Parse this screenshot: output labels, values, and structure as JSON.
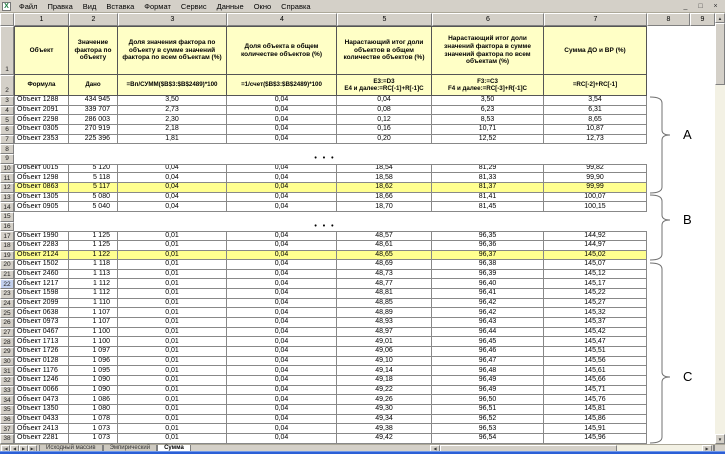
{
  "menu": {
    "items": [
      "Файл",
      "Правка",
      "Вид",
      "Вставка",
      "Формат",
      "Сервис",
      "Данные",
      "Окно",
      "Справка"
    ]
  },
  "window_buttons": [
    {
      "name": "minimize",
      "glyph": "_"
    },
    {
      "name": "restore",
      "glyph": "□"
    },
    {
      "name": "close",
      "glyph": "×"
    }
  ],
  "sheet": {
    "column_headers": [
      "1",
      "2",
      "3",
      "4",
      "5",
      "6",
      "7",
      "8",
      "9"
    ],
    "header_row_numbers": [
      "1",
      "2"
    ],
    "table": {
      "titles": [
        "Объект",
        "Значение фактора по объекту",
        "Доля значения фактора по объекту в сумме значений фактора по всем объектам (%)",
        "Доля объекта в общем количестве объектов (%)",
        "Нарастающий итог доли объектов в общем количестве объектов (%)",
        "Нарастающий итог доли значений фактора в сумме значений фактора по всем объектам (%)",
        "Сумма ДО и ВР (%)"
      ],
      "formulas": [
        "Формула",
        "Дано",
        "=Вп/СУММ($B$3:$B$2489)*100",
        "=1/счет($B$3:$B$2489)*100",
        "E3:=D3\nE4 и далее:=RC[-1]+R[-1]C",
        "F3:=C3\nF4 и далее:=RC[-3]+R[-1]C",
        "=RC[-2]+RC[-1]"
      ]
    },
    "gap_dots": "• • •",
    "rows": [
      {
        "n": "3",
        "name": "Объект 1288",
        "factor": "434 945",
        "share": "3,50",
        "obj_share": "0,04",
        "cum_obj": "0,04",
        "cum_factor": "3,50",
        "sum": "3,54"
      },
      {
        "n": "4",
        "name": "Объект 2091",
        "factor": "339 707",
        "share": "2,73",
        "obj_share": "0,04",
        "cum_obj": "0,08",
        "cum_factor": "6,23",
        "sum": "6,31"
      },
      {
        "n": "5",
        "name": "Объект 2298",
        "factor": "286 003",
        "share": "2,30",
        "obj_share": "0,04",
        "cum_obj": "0,12",
        "cum_factor": "8,53",
        "sum": "8,65"
      },
      {
        "n": "6",
        "name": "Объект 0305",
        "factor": "270 919",
        "share": "2,18",
        "obj_share": "0,04",
        "cum_obj": "0,16",
        "cum_factor": "10,71",
        "sum": "10,87"
      },
      {
        "n": "7",
        "name": "Объект 2353",
        "factor": "225 396",
        "share": "1,81",
        "obj_share": "0,04",
        "cum_obj": "0,20",
        "cum_factor": "12,52",
        "sum": "12,73"
      },
      {
        "n": "8",
        "empty": true
      },
      {
        "n": "9",
        "empty": true,
        "dots": true
      },
      {
        "n": "10",
        "name": "Объект 0015",
        "factor": "5 120",
        "share": "0,04",
        "obj_share": "0,04",
        "cum_obj": "18,54",
        "cum_factor": "81,29",
        "sum": "99,82"
      },
      {
        "n": "11",
        "name": "Объект 1298",
        "factor": "5 118",
        "share": "0,04",
        "obj_share": "0,04",
        "cum_obj": "18,58",
        "cum_factor": "81,33",
        "sum": "99,90"
      },
      {
        "n": "12",
        "name": "Объект 0863",
        "factor": "5 117",
        "share": "0,04",
        "obj_share": "0,04",
        "cum_obj": "18,62",
        "cum_factor": "81,37",
        "sum": "99,99",
        "highlight": true
      },
      {
        "n": "13",
        "name": "Объект 1305",
        "factor": "5 080",
        "share": "0,04",
        "obj_share": "0,04",
        "cum_obj": "18,66",
        "cum_factor": "81,41",
        "sum": "100,07"
      },
      {
        "n": "14",
        "name": "Объект 0905",
        "factor": "5 040",
        "share": "0,04",
        "obj_share": "0,04",
        "cum_obj": "18,70",
        "cum_factor": "81,45",
        "sum": "100,15"
      },
      {
        "n": "15",
        "empty": true
      },
      {
        "n": "16",
        "empty": true,
        "dots": true
      },
      {
        "n": "17",
        "name": "Объект 1990",
        "factor": "1 125",
        "share": "0,01",
        "obj_share": "0,04",
        "cum_obj": "48,57",
        "cum_factor": "96,35",
        "sum": "144,92"
      },
      {
        "n": "18",
        "name": "Объект 2283",
        "factor": "1 125",
        "share": "0,01",
        "obj_share": "0,04",
        "cum_obj": "48,61",
        "cum_factor": "96,36",
        "sum": "144,97"
      },
      {
        "n": "19",
        "name": "Объект 2124",
        "factor": "1 122",
        "share": "0,01",
        "obj_share": "0,04",
        "cum_obj": "48,65",
        "cum_factor": "96,37",
        "sum": "145,02",
        "highlight": true
      },
      {
        "n": "20",
        "name": "Объект 1502",
        "factor": "1 118",
        "share": "0,01",
        "obj_share": "0,04",
        "cum_obj": "48,69",
        "cum_factor": "96,38",
        "sum": "145,07"
      },
      {
        "n": "21",
        "name": "Объект 2460",
        "factor": "1 113",
        "share": "0,01",
        "obj_share": "0,04",
        "cum_obj": "48,73",
        "cum_factor": "96,39",
        "sum": "145,12"
      },
      {
        "n": "22",
        "name": "Объект 1217",
        "factor": "1 112",
        "share": "0,01",
        "obj_share": "0,04",
        "cum_obj": "48,77",
        "cum_factor": "96,40",
        "sum": "145,17",
        "selected": true
      },
      {
        "n": "23",
        "name": "Объект 1598",
        "factor": "1 112",
        "share": "0,01",
        "obj_share": "0,04",
        "cum_obj": "48,81",
        "cum_factor": "96,41",
        "sum": "145,22"
      },
      {
        "n": "24",
        "name": "Объект 2099",
        "factor": "1 110",
        "share": "0,01",
        "obj_share": "0,04",
        "cum_obj": "48,85",
        "cum_factor": "96,42",
        "sum": "145,27"
      },
      {
        "n": "25",
        "name": "Объект 0638",
        "factor": "1 107",
        "share": "0,01",
        "obj_share": "0,04",
        "cum_obj": "48,89",
        "cum_factor": "96,42",
        "sum": "145,32"
      },
      {
        "n": "26",
        "name": "Объект 0973",
        "factor": "1 107",
        "share": "0,01",
        "obj_share": "0,04",
        "cum_obj": "48,93",
        "cum_factor": "96,43",
        "sum": "145,37"
      },
      {
        "n": "27",
        "name": "Объект 0467",
        "factor": "1 100",
        "share": "0,01",
        "obj_share": "0,04",
        "cum_obj": "48,97",
        "cum_factor": "96,44",
        "sum": "145,42"
      },
      {
        "n": "28",
        "name": "Объект 1713",
        "factor": "1 100",
        "share": "0,01",
        "obj_share": "0,04",
        "cum_obj": "49,01",
        "cum_factor": "96,45",
        "sum": "145,47"
      },
      {
        "n": "29",
        "name": "Объект 1726",
        "factor": "1 097",
        "share": "0,01",
        "obj_share": "0,04",
        "cum_obj": "49,06",
        "cum_factor": "96,46",
        "sum": "145,51"
      },
      {
        "n": "30",
        "name": "Объект 0128",
        "factor": "1 096",
        "share": "0,01",
        "obj_share": "0,04",
        "cum_obj": "49,10",
        "cum_factor": "96,47",
        "sum": "145,56"
      },
      {
        "n": "31",
        "name": "Объект 1176",
        "factor": "1 095",
        "share": "0,01",
        "obj_share": "0,04",
        "cum_obj": "49,14",
        "cum_factor": "96,48",
        "sum": "145,61"
      },
      {
        "n": "32",
        "name": "Объект 1246",
        "factor": "1 090",
        "share": "0,01",
        "obj_share": "0,04",
        "cum_obj": "49,18",
        "cum_factor": "96,49",
        "sum": "145,66"
      },
      {
        "n": "33",
        "name": "Объект 0066",
        "factor": "1 090",
        "share": "0,01",
        "obj_share": "0,04",
        "cum_obj": "49,22",
        "cum_factor": "96,49",
        "sum": "145,71"
      },
      {
        "n": "34",
        "name": "Объект 0473",
        "factor": "1 086",
        "share": "0,01",
        "obj_share": "0,04",
        "cum_obj": "49,26",
        "cum_factor": "96,50",
        "sum": "145,76"
      },
      {
        "n": "35",
        "name": "Объект 1350",
        "factor": "1 080",
        "share": "0,01",
        "obj_share": "0,04",
        "cum_obj": "49,30",
        "cum_factor": "96,51",
        "sum": "145,81"
      },
      {
        "n": "36",
        "name": "Объект 0433",
        "factor": "1 078",
        "share": "0,01",
        "obj_share": "0,04",
        "cum_obj": "49,34",
        "cum_factor": "96,52",
        "sum": "145,86"
      },
      {
        "n": "37",
        "name": "Объект 2413",
        "factor": "1 073",
        "share": "0,01",
        "obj_share": "0,04",
        "cum_obj": "49,38",
        "cum_factor": "96,53",
        "sum": "145,91"
      },
      {
        "n": "38",
        "name": "Объект 2281",
        "factor": "1 073",
        "share": "0,01",
        "obj_share": "0,04",
        "cum_obj": "49,42",
        "cum_factor": "96,54",
        "sum": "145,96"
      }
    ],
    "braces": [
      {
        "label": "A"
      },
      {
        "label": "B"
      },
      {
        "label": "C"
      }
    ],
    "tabs": [
      {
        "label": "Исходный массив",
        "active": false
      },
      {
        "label": "Эмпирический",
        "active": false
      },
      {
        "label": "Сумма",
        "active": true
      }
    ],
    "tab_nav": [
      "|◀",
      "◀",
      "▶",
      "▶|"
    ],
    "scrollbar": {
      "up": "▲",
      "down": "▼",
      "left": "◀",
      "right": "▶"
    }
  },
  "colors": {
    "chrome": "#d4d0c8",
    "header_fill": "#ffffc6",
    "highlight_fill": "#ffff8f",
    "selected_row_header": "#c3d1ee",
    "taskbar": "#2b5fd6",
    "table_border": "#808080"
  }
}
